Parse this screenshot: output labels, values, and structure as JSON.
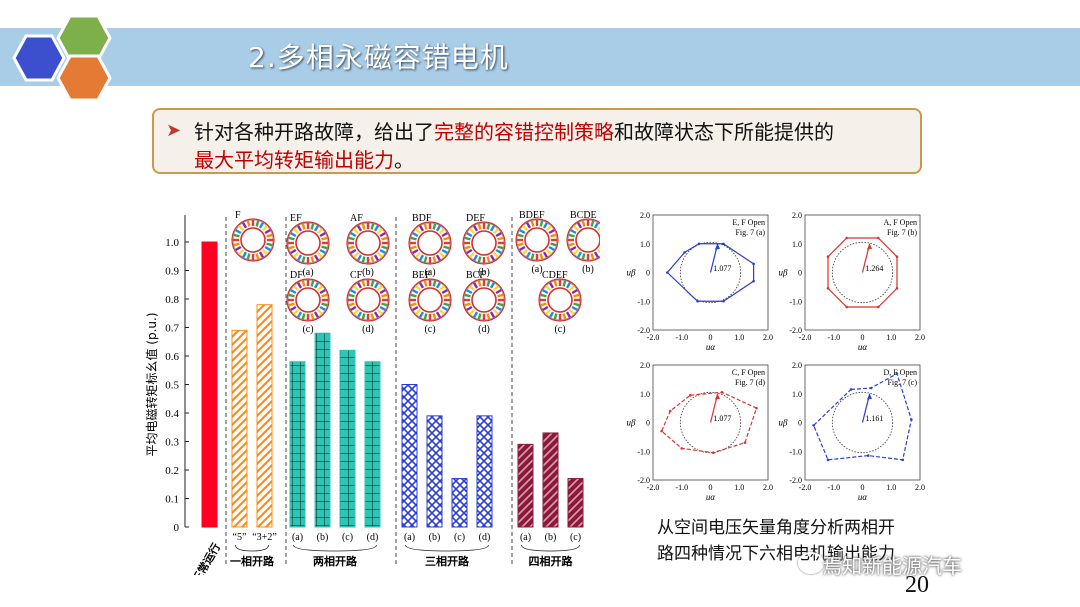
{
  "slide": {
    "title": "2.多相永磁容错电机",
    "bullet_line1_prefix": "针对各种开路故障，给出了",
    "bullet_line1_highlight": "完整的容错控制策略",
    "bullet_line1_suffix": "和故障状态下所能提供的",
    "bullet_line2_highlight": "最大平均转矩输出能力",
    "bullet_line2_suffix": "。",
    "caption_line1": "从空间电压矢量角度分析两相开",
    "caption_line2": "路四种情况下六相电机输出能力",
    "watermark": "焉知新能源汽车",
    "page_number": "20",
    "colors": {
      "banner": "#a9cce7",
      "accent_red": "#c00000",
      "callout_border": "#c99a4d"
    }
  },
  "chart_data": [
    {
      "type": "bar",
      "ylabel": "平均电磁转矩标幺值 (p.u.)",
      "ylim": [
        0,
        1.0
      ],
      "yticks": [
        "0",
        "0.1",
        "0.2",
        "0.3",
        "0.4",
        "0.5",
        "0.6",
        "0.7",
        "0.8",
        "0.9",
        "1.0"
      ],
      "groups": [
        {
          "label": "正常运行",
          "color": "#ff0022",
          "pattern": "solid",
          "bars": [
            {
              "tick": "",
              "value": 1.0
            }
          ]
        },
        {
          "label": "一相开路",
          "color": "#ff8c1a",
          "pattern": "hatch",
          "bars": [
            {
              "tick": "“5”",
              "value": 0.69
            },
            {
              "tick": "“3+2”",
              "value": 0.78
            }
          ]
        },
        {
          "label": "两相开路",
          "color": "#2ec4b6",
          "pattern": "grid",
          "bars": [
            {
              "tick": "(a)",
              "value": 0.58
            },
            {
              "tick": "(b)",
              "value": 0.68
            },
            {
              "tick": "(c)",
              "value": 0.62
            },
            {
              "tick": "(d)",
              "value": 0.58
            }
          ]
        },
        {
          "label": "三相开路",
          "color": "#2a3cd8",
          "pattern": "cross",
          "bars": [
            {
              "tick": "(a)",
              "value": 0.5
            },
            {
              "tick": "(b)",
              "value": 0.39
            },
            {
              "tick": "(c)",
              "value": 0.17
            },
            {
              "tick": "(d)",
              "value": 0.39
            }
          ]
        },
        {
          "label": "四相开路",
          "color": "#8b1a3a",
          "pattern": "diag",
          "bars": [
            {
              "tick": "(a)",
              "value": 0.29
            },
            {
              "tick": "(b)",
              "value": 0.33
            },
            {
              "tick": "(c)",
              "value": 0.17
            }
          ]
        }
      ],
      "motor_labels": [
        "F",
        "EF",
        "AF",
        "DF",
        "CF",
        "BDF",
        "DEF",
        "BEF",
        "BCF",
        "BDEF",
        "BCDE",
        "CDEF"
      ],
      "motor_sublabels": [
        "(a)",
        "(b)",
        "(c)",
        "(d)"
      ]
    },
    {
      "type": "line",
      "panels": [
        {
          "title": "E, F Open",
          "fig": "Fig. 7 (a)",
          "color": "#2b3fd0",
          "dashed": false,
          "magnitude": "1.077",
          "polygon": [
            [
              -0.9,
              0.7
            ],
            [
              -0.4,
              1.0
            ],
            [
              0.45,
              1.0
            ],
            [
              1.5,
              0.3
            ],
            [
              1.5,
              -0.3
            ],
            [
              0.45,
              -1.0
            ],
            [
              -0.45,
              -1.0
            ],
            [
              -1.5,
              0.0
            ]
          ]
        },
        {
          "title": "A, F Open",
          "fig": "Fig. 7 (b)",
          "color": "#d9342b",
          "dashed": false,
          "magnitude": "1.264",
          "polygon": [
            [
              -0.55,
              1.2
            ],
            [
              0.55,
              1.2
            ],
            [
              1.2,
              0.55
            ],
            [
              1.2,
              -0.55
            ],
            [
              0.55,
              -1.2
            ],
            [
              -0.55,
              -1.2
            ],
            [
              -1.2,
              -0.55
            ],
            [
              -1.2,
              0.55
            ]
          ]
        },
        {
          "title": "C, F Open",
          "fig": "Fig. 7 (d)",
          "color": "#d9342b",
          "dashed": true,
          "magnitude": "1.077",
          "polygon": [
            [
              -0.7,
              0.95
            ],
            [
              0.4,
              1.05
            ],
            [
              1.6,
              0.5
            ],
            [
              1.2,
              -0.7
            ],
            [
              0.1,
              -1.05
            ],
            [
              -1.0,
              -0.9
            ],
            [
              -1.7,
              -0.3
            ],
            [
              -1.4,
              0.4
            ]
          ]
        },
        {
          "title": "D, F Open",
          "fig": "Fig. 7 (c)",
          "color": "#2b3fd0",
          "dashed": true,
          "magnitude": "1.161",
          "polygon": [
            [
              -0.4,
              1.15
            ],
            [
              0.3,
              1.2
            ],
            [
              1.2,
              1.7
            ],
            [
              1.7,
              0.1
            ],
            [
              1.4,
              -1.3
            ],
            [
              0.2,
              -1.15
            ],
            [
              -1.2,
              -1.3
            ],
            [
              -1.7,
              -0.1
            ]
          ]
        }
      ],
      "xlabel": "uα",
      "ylabel": "uβ",
      "xticks": [
        "-2.0",
        "-1.0",
        "0",
        "1.0",
        "2.0"
      ],
      "yticks": [
        "2.0",
        "1.0",
        "0",
        "-1.0",
        "-2.0"
      ],
      "xlim": [
        -2,
        2
      ],
      "ylim": [
        -2,
        2
      ]
    }
  ]
}
